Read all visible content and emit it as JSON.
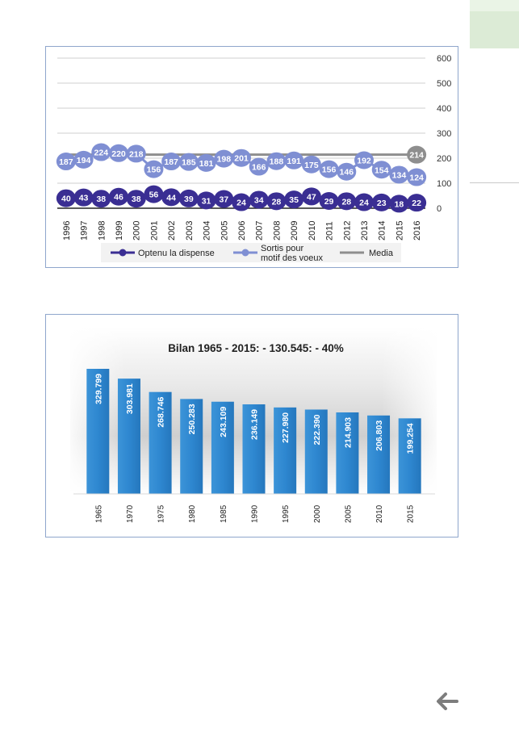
{
  "chart_data": [
    {
      "type": "line",
      "categories": [
        "1996",
        "1997",
        "1998",
        "1999",
        "2000",
        "2001",
        "2002",
        "2003",
        "2004",
        "2005",
        "2006",
        "2007",
        "2008",
        "2009",
        "2010",
        "2011",
        "2012",
        "2013",
        "2014",
        "2015",
        "2016"
      ],
      "series": [
        {
          "name": "Optenu la dispense",
          "color": "#3a2e93",
          "values": [
            40,
            43,
            38,
            46,
            38,
            56,
            44,
            39,
            31,
            37,
            24,
            34,
            28,
            35,
            47,
            29,
            28,
            24,
            23,
            18,
            22
          ]
        },
        {
          "name": "Sortis pour motif des voeux",
          "color": "#7f8fd3",
          "values": [
            187,
            194,
            224,
            220,
            218,
            156,
            187,
            185,
            181,
            198,
            201,
            166,
            188,
            191,
            175,
            156,
            146,
            192,
            154,
            134,
            124
          ]
        },
        {
          "name": "Media",
          "color": "#8e8e8e",
          "values": [
            214,
            214,
            214,
            214,
            214,
            214,
            214,
            214,
            214,
            214,
            214,
            214,
            214,
            214,
            214,
            214,
            214,
            214,
            214,
            214,
            214
          ],
          "label": "214"
        }
      ],
      "ylim": [
        0,
        600
      ],
      "yticks": [
        0,
        100,
        200,
        300,
        400,
        500,
        600
      ],
      "grid": true,
      "legend": "bottom"
    },
    {
      "type": "bar",
      "title": "Bilan 1965 - 2015: - 130.545: - 40%",
      "categories": [
        "1965",
        "1970",
        "1975",
        "1980",
        "1985",
        "1990",
        "1995",
        "2000",
        "2005",
        "2010",
        "2015"
      ],
      "values": [
        329799,
        303981,
        268746,
        250283,
        243109,
        236149,
        227980,
        222390,
        214903,
        206803,
        199254
      ],
      "labels": [
        "329.799",
        "303.981",
        "268.746",
        "250.283",
        "243.109",
        "236.149",
        "227.980",
        "222.390",
        "214.903",
        "206.803",
        "199.254"
      ],
      "color": "#2f86cf"
    }
  ],
  "icons": {
    "back": "arrow-left-icon"
  }
}
